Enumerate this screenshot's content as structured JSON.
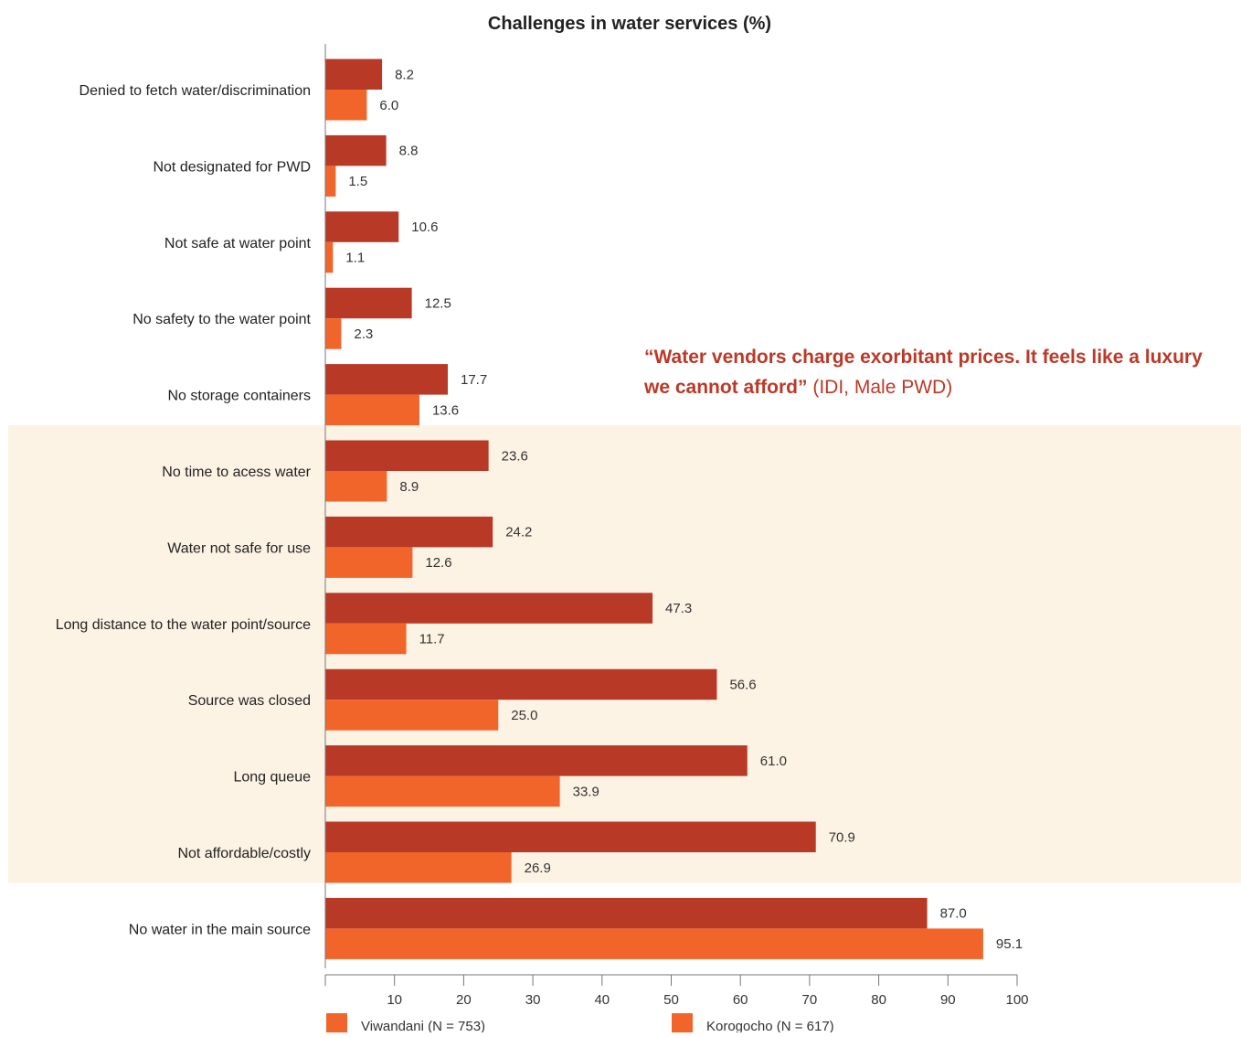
{
  "chart_data": {
    "type": "bar",
    "orientation": "horizontal",
    "title": "Challenges in water services (%)",
    "categories": [
      "Denied to fetch water/discrimination",
      "Not designated for PWD",
      "Not safe at water point",
      "No safety to the water point",
      "No storage containers",
      "No time to acess water",
      "Water not safe for use",
      "Long distance to the water point/source",
      "Source was closed",
      "Long queue",
      "Not affordable/costly",
      "No water in the main source"
    ],
    "series": [
      {
        "name": "Viwandani (N = 753)",
        "color": "#b93927",
        "values": [
          8.2,
          8.8,
          10.6,
          12.5,
          17.7,
          23.6,
          24.2,
          47.3,
          56.6,
          61.0,
          70.9,
          87.0
        ],
        "labels": [
          "8.2",
          "8.8",
          "10.6",
          "12.5",
          "17.7",
          "23.6",
          "24.2",
          "47.3",
          "56.6",
          "61.0",
          "70.9",
          "87.0"
        ]
      },
      {
        "name": "Korogocho (N = 617)",
        "color": "#f2652a",
        "values": [
          6.0,
          1.5,
          1.1,
          2.3,
          13.6,
          8.9,
          12.6,
          11.7,
          25.0,
          33.9,
          26.9,
          95.1
        ],
        "labels": [
          "6.0",
          "1.5",
          "1.1",
          "2.3",
          "13.6",
          "8.9",
          "12.6",
          "11.7",
          "25.0",
          "33.9",
          "26.9",
          "95.1"
        ]
      }
    ],
    "xlim": [
      0,
      100
    ],
    "xticks": [
      "10",
      "20",
      "30",
      "40",
      "50",
      "60",
      "70",
      "80",
      "90",
      "100"
    ],
    "legend_position": "bottom",
    "legend_swatch_color": "#f2652a",
    "highlight_color": "#fdf3e5",
    "highlighted_categories": [
      "No time to acess water",
      "Water not safe for use",
      "Long distance to the water point/source",
      "Source was closed",
      "Long queue",
      "Not affordable/costly"
    ],
    "grid": false
  },
  "quote": {
    "text": "“Water vendors charge exorbitant prices. It feels like a luxury we cannot afford”",
    "source": "(IDI, Male PWD)",
    "color": "#bb3927"
  }
}
